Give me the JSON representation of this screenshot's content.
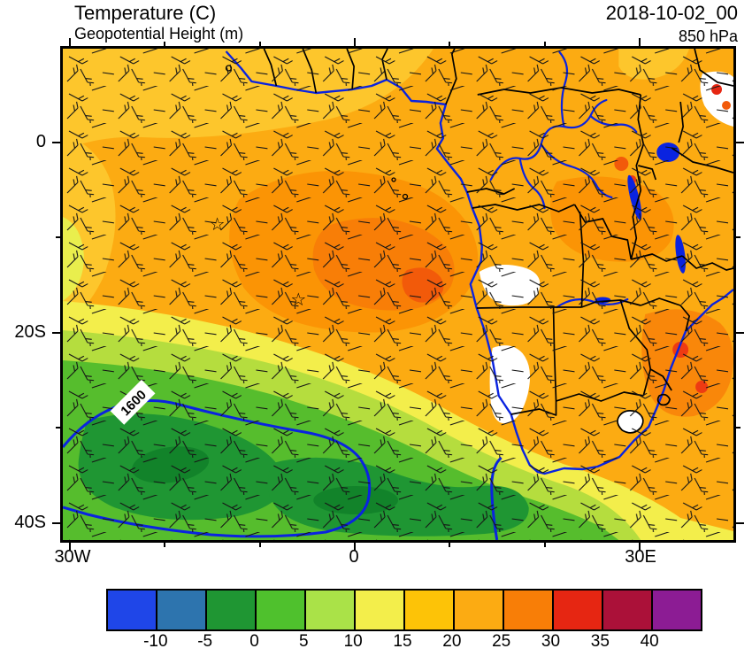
{
  "header": {
    "title": "Temperature (C)",
    "subtitle": "Geopotential Height (m)",
    "datetime": "2018-10-02_00",
    "level": "850 hPa"
  },
  "axes": {
    "y_labels": [
      "0",
      "20S",
      "40S"
    ],
    "x_labels": [
      "30W",
      "0",
      "30E"
    ]
  },
  "map": {
    "contour_label": "1600",
    "markers": [
      {
        "symbol": "☆"
      },
      {
        "symbol": "☆"
      }
    ]
  },
  "colorbar": {
    "labels": [
      "-10",
      "-5",
      "0",
      "5",
      "10",
      "15",
      "20",
      "25",
      "30",
      "35",
      "40"
    ],
    "colors": [
      "#1f46e8",
      "#2d74ae",
      "#1f9633",
      "#4fc12d",
      "#aae248",
      "#f3ee4b",
      "#fdc307",
      "#fcab12",
      "#f87e07",
      "#e62612",
      "#ab1139",
      "#8c1c94"
    ]
  },
  "chart_data": {
    "type": "heatmap",
    "title": "Temperature (C)",
    "overlay_field": "Geopotential Height (m)",
    "valid_time": "2018-10-02_00",
    "pressure_level": "850 hPa",
    "x_tick_labels": [
      "30W",
      "0",
      "30E"
    ],
    "y_tick_labels": [
      "0",
      "20S",
      "40S"
    ],
    "temperature_levels_c": [
      -10,
      -5,
      0,
      5,
      10,
      15,
      20,
      25,
      30,
      35,
      40
    ],
    "palette_hex": [
      "#1f46e8",
      "#2d74ae",
      "#1f9633",
      "#4fc12d",
      "#aae248",
      "#f3ee4b",
      "#fdc307",
      "#fcab12",
      "#f87e07",
      "#e62612",
      "#ab1139",
      "#8c1c94"
    ],
    "geopotential_height_contours_m": [
      1600
    ],
    "wind_overlay": "850 hPa wind barbs",
    "legend_position": "bottom",
    "readings": [
      {
        "region": "tropical Africa and Atlantic, 10N-20S",
        "temperature_c": "20 to 30"
      },
      {
        "region": "central South Atlantic warm core ~5S-18S",
        "temperature_c": "25 to 30"
      },
      {
        "region": "southeastern Africa interior patches",
        "temperature_c": "30 to 35"
      },
      {
        "region": "southwest Atlantic 28S-40S inside 1600 m contour",
        "temperature_c": "0 to 10"
      },
      {
        "region": "high terrain (Lesotho, Angola-Namibia escarpment, NE highlands)",
        "temperature_c": "no data (white)"
      }
    ]
  }
}
